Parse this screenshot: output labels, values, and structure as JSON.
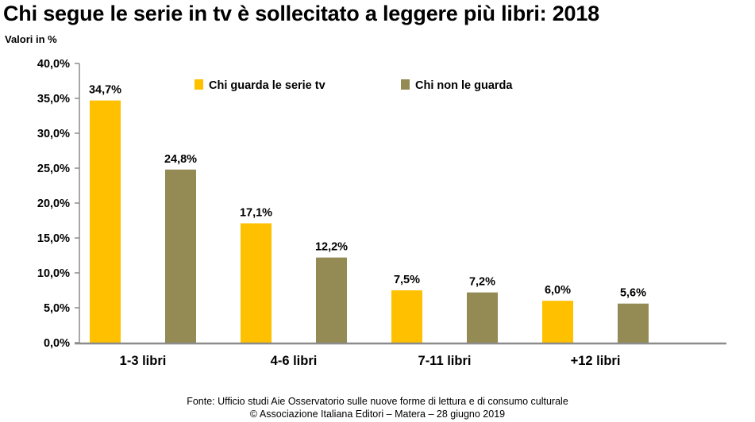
{
  "page": {
    "title": "Chi segue le serie in tv è sollecitato a leggere più libri: 2018",
    "unit_label": "Valori in %",
    "source_line1": "Fonte:  Ufficio studi Aie Osservatorio sulle nuove forme di lettura e di consumo culturale",
    "source_line2": "© Associazione Italiana Editori – Matera – 28 giugno 2019"
  },
  "chart_data": {
    "type": "bar",
    "title": "Chi segue le serie in tv è sollecitato a leggere più libri: 2018",
    "ylabel": "Valori in %",
    "xlabel": "",
    "categories": [
      "1-3 libri",
      "4-6 libri",
      "7-11 libri",
      "+12 libri"
    ],
    "series": [
      {
        "name": "Chi guarda le serie tv",
        "color": "#FFC000",
        "values": [
          34.7,
          17.1,
          7.5,
          6.0
        ],
        "labels": [
          "34,7%",
          "17,1%",
          "7,5%",
          "6,0%"
        ]
      },
      {
        "name": "Chi non le guarda",
        "color": "#948A54",
        "values": [
          24.8,
          12.2,
          7.2,
          5.6
        ],
        "labels": [
          "24,8%",
          "12,2%",
          "7,2%",
          "5,6%"
        ]
      }
    ],
    "ylim": [
      0,
      40
    ],
    "yticks": [
      0,
      5,
      10,
      15,
      20,
      25,
      30,
      35,
      40
    ],
    "ytick_labels": [
      "0,0%",
      "5,0%",
      "10,0%",
      "15,0%",
      "20,0%",
      "25,0%",
      "30,0%",
      "35,0%",
      "40,0%"
    ],
    "grid": false,
    "legend_position": "top"
  }
}
